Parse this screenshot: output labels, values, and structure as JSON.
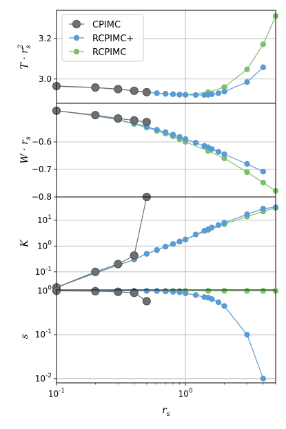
{
  "chart_data": {
    "type": "line",
    "x_scale": "log",
    "xlim": [
      0.1,
      5.0
    ],
    "shared_xlabel": "r_s",
    "x_tick_labels": [
      "10^-1",
      "10^0"
    ],
    "grid": true,
    "legend": {
      "placement": "top-left",
      "entries": [
        "CPIMC",
        "RCPIMC+",
        "RCPIMC"
      ]
    },
    "colors": {
      "CPIMC": "#707070",
      "RCPIMC+": "#5b9bd5",
      "RCPIMC": "#7cc16a"
    },
    "panels": [
      {
        "ylabel": "T · r_s^2",
        "y_scale": "linear",
        "ylim": [
          2.88,
          3.34
        ],
        "y_ticks": [
          {
            "v": 3.0,
            "label": "3.0"
          },
          {
            "v": 3.2,
            "label": "3.2"
          }
        ],
        "series": [
          {
            "name": "CPIMC",
            "x": [
              0.1,
              0.2,
              0.3,
              0.4,
              0.5
            ],
            "y": [
              2.965,
              2.958,
              2.95,
              2.942,
              2.935
            ]
          },
          {
            "name": "RCPIMC+",
            "x": [
              0.1,
              0.2,
              0.3,
              0.4,
              0.5,
              0.6,
              0.7,
              0.8,
              0.9,
              1.0,
              1.2,
              1.4,
              1.5,
              1.6,
              1.8,
              2.0,
              3.0,
              4.0
            ],
            "y": [
              2.965,
              2.958,
              2.95,
              2.942,
              2.935,
              2.93,
              2.927,
              2.925,
              2.923,
              2.922,
              2.921,
              2.921,
              2.922,
              2.925,
              2.93,
              2.938,
              2.985,
              3.058
            ]
          },
          {
            "name": "RCPIMC",
            "x": [
              0.1,
              0.2,
              0.3,
              0.4,
              0.5,
              0.6,
              0.7,
              0.8,
              0.9,
              1.0,
              1.5,
              2.0,
              3.0,
              4.0,
              5.0
            ],
            "y": [
              2.965,
              2.958,
              2.95,
              2.942,
              2.935,
              2.93,
              2.927,
              2.925,
              2.923,
              2.922,
              2.935,
              2.96,
              3.048,
              3.172,
              3.312
            ]
          }
        ]
      },
      {
        "ylabel": "W · r_s",
        "y_scale": "linear",
        "ylim": [
          -0.8,
          -0.46
        ],
        "y_ticks": [
          {
            "v": -0.8,
            "label": "−0.8"
          },
          {
            "v": -0.7,
            "label": "−0.7"
          },
          {
            "v": -0.6,
            "label": "−0.6"
          }
        ],
        "series": [
          {
            "name": "CPIMC",
            "x": [
              0.1,
              0.2,
              0.3,
              0.4,
              0.5
            ],
            "y": [
              -0.487,
              -0.503,
              -0.515,
              -0.522,
              -0.528
            ]
          },
          {
            "name": "RCPIMC+",
            "x": [
              0.1,
              0.2,
              0.3,
              0.4,
              0.5,
              0.6,
              0.7,
              0.8,
              0.9,
              1.0,
              1.2,
              1.4,
              1.5,
              1.6,
              1.8,
              2.0,
              3.0,
              4.0
            ],
            "y": [
              -0.487,
              -0.505,
              -0.52,
              -0.533,
              -0.545,
              -0.556,
              -0.565,
              -0.574,
              -0.582,
              -0.59,
              -0.603,
              -0.615,
              -0.62,
              -0.626,
              -0.636,
              -0.645,
              -0.68,
              -0.708
            ]
          },
          {
            "name": "RCPIMC",
            "x": [
              0.1,
              0.2,
              0.3,
              0.4,
              0.5,
              0.6,
              0.7,
              0.8,
              0.9,
              1.0,
              1.5,
              2.0,
              3.0,
              4.0,
              5.0
            ],
            "y": [
              -0.487,
              -0.505,
              -0.52,
              -0.535,
              -0.548,
              -0.56,
              -0.57,
              -0.58,
              -0.59,
              -0.6,
              -0.633,
              -0.66,
              -0.71,
              -0.748,
              -0.778
            ]
          }
        ]
      },
      {
        "ylabel": "K",
        "y_scale": "log",
        "ylim": [
          0.02,
          80
        ],
        "y_ticks": [
          {
            "v": 0.1,
            "label": "10^-1"
          },
          {
            "v": 1,
            "label": "10^0"
          },
          {
            "v": 10,
            "label": "10^1"
          }
        ],
        "series": [
          {
            "name": "CPIMC",
            "x": [
              0.1,
              0.2,
              0.3,
              0.4,
              0.5
            ],
            "y": [
              0.025,
              0.1,
              0.2,
              0.43,
              80
            ]
          },
          {
            "name": "RCPIMC+",
            "x": [
              0.1,
              0.2,
              0.3,
              0.4,
              0.5,
              0.6,
              0.7,
              0.8,
              0.9,
              1.0,
              1.2,
              1.4,
              1.5,
              1.6,
              1.8,
              2.0,
              3.0,
              4.0,
              5.0
            ],
            "y": [
              0.025,
              0.09,
              0.18,
              0.3,
              0.5,
              0.7,
              0.95,
              1.2,
              1.5,
              1.8,
              2.8,
              3.9,
              4.5,
              5.2,
              6.5,
              8.0,
              17,
              28,
              32
            ]
          },
          {
            "name": "RCPIMC",
            "x": [
              0.1,
              0.2,
              0.3,
              0.4,
              0.5,
              0.6,
              0.7,
              0.8,
              0.9,
              1.0,
              1.5,
              2.0,
              3.0,
              4.0,
              5.0
            ],
            "y": [
              0.025,
              0.09,
              0.18,
              0.3,
              0.5,
              0.7,
              0.95,
              1.2,
              1.5,
              1.8,
              4.2,
              7.0,
              14,
              22,
              30
            ]
          }
        ]
      },
      {
        "ylabel": "s",
        "y_scale": "log",
        "ylim": [
          0.008,
          1.05
        ],
        "y_ticks": [
          {
            "v": 0.01,
            "label": "10^-2"
          },
          {
            "v": 0.1,
            "label": "10^-1"
          },
          {
            "v": 1,
            "label": "10^0"
          }
        ],
        "series": [
          {
            "name": "CPIMC",
            "x": [
              0.1,
              0.2,
              0.3,
              0.4,
              0.5
            ],
            "y": [
              1.0,
              0.98,
              0.95,
              0.9,
              0.58
            ]
          },
          {
            "name": "RCPIMC+",
            "x": [
              0.1,
              0.2,
              0.3,
              0.4,
              0.5,
              0.6,
              0.7,
              0.8,
              0.9,
              1.0,
              1.2,
              1.4,
              1.5,
              1.6,
              1.8,
              2.0,
              3.0,
              4.0
            ],
            "y": [
              1.0,
              1.0,
              1.0,
              1.0,
              1.0,
              0.99,
              0.97,
              0.95,
              0.93,
              0.88,
              0.8,
              0.72,
              0.7,
              0.65,
              0.55,
              0.45,
              0.1,
              0.01
            ]
          },
          {
            "name": "RCPIMC",
            "x": [
              0.1,
              0.2,
              0.3,
              0.4,
              0.5,
              0.6,
              0.7,
              0.8,
              0.9,
              1.0,
              1.5,
              2.0,
              3.0,
              4.0,
              5.0
            ],
            "y": [
              1.0,
              1.0,
              1.0,
              1.0,
              1.0,
              1.0,
              1.0,
              1.0,
              1.0,
              1.0,
              1.0,
              1.0,
              1.0,
              1.0,
              1.0
            ]
          }
        ]
      }
    ]
  }
}
